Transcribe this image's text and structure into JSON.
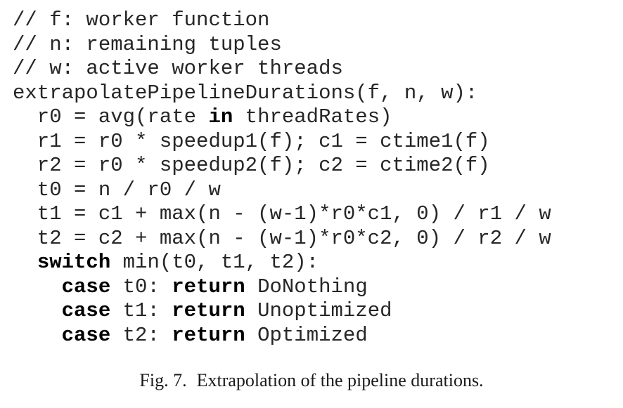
{
  "code": {
    "lines": [
      [
        {
          "t": "// f: worker function"
        }
      ],
      [
        {
          "t": "// n: remaining tuples"
        }
      ],
      [
        {
          "t": "// w: active worker threads"
        }
      ],
      [
        {
          "t": "extrapolatePipelineDurations(f, n, w):"
        }
      ],
      [
        {
          "t": "  r0 = avg(rate "
        },
        {
          "t": "in",
          "kw": true
        },
        {
          "t": " threadRates)"
        }
      ],
      [
        {
          "t": "  r1 = r0 * speedup1(f); c1 = ctime1(f)"
        }
      ],
      [
        {
          "t": "  r2 = r0 * speedup2(f); c2 = ctime2(f)"
        }
      ],
      [
        {
          "t": "  t0 = n / r0 / w"
        }
      ],
      [
        {
          "t": "  t1 = c1 + max(n - (w-1)*r0*c1, 0) / r1 / w"
        }
      ],
      [
        {
          "t": "  t2 = c2 + max(n - (w-1)*r0*c2, 0) / r2 / w"
        }
      ],
      [
        {
          "t": "  "
        },
        {
          "t": "switch",
          "kw": true
        },
        {
          "t": " min(t0, t1, t2):"
        }
      ],
      [
        {
          "t": "    "
        },
        {
          "t": "case",
          "kw": true
        },
        {
          "t": " t0: "
        },
        {
          "t": "return",
          "kw": true
        },
        {
          "t": " DoNothing"
        }
      ],
      [
        {
          "t": "    "
        },
        {
          "t": "case",
          "kw": true
        },
        {
          "t": " t1: "
        },
        {
          "t": "return",
          "kw": true
        },
        {
          "t": " Unoptimized"
        }
      ],
      [
        {
          "t": "    "
        },
        {
          "t": "case",
          "kw": true
        },
        {
          "t": " t2: "
        },
        {
          "t": "return",
          "kw": true
        },
        {
          "t": " Optimized"
        }
      ]
    ]
  },
  "caption": {
    "label": "Fig. 7.",
    "text": "Extrapolation of the pipeline durations."
  }
}
